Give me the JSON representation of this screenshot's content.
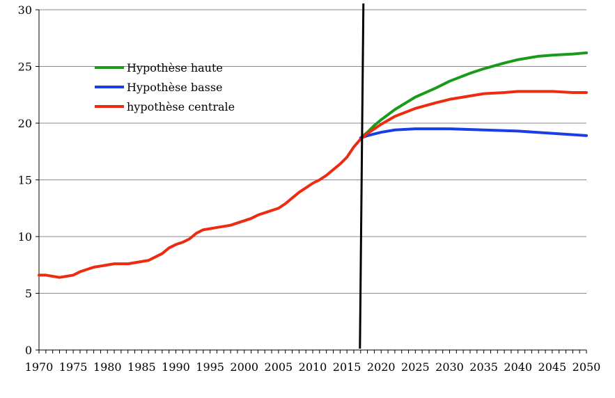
{
  "chart_data": {
    "type": "line",
    "title": "",
    "xlabel": "",
    "ylabel": "",
    "xlim": [
      1970,
      2050
    ],
    "ylim": [
      0,
      30
    ],
    "x_ticks": [
      "1970",
      "1975",
      "1980",
      "1985",
      "1990",
      "1995",
      "2000",
      "2005",
      "2010",
      "2015",
      "2020",
      "2025",
      "2030",
      "2035",
      "2040",
      "2045",
      "2050"
    ],
    "y_ticks": [
      "0",
      "5",
      "10",
      "15",
      "20",
      "25",
      "30"
    ],
    "grid": "horizontal",
    "legend": "top-left",
    "vertical_marker_year": 2017,
    "series": [
      {
        "name": "Hypothèse haute",
        "color": "#1a9a1a",
        "points": [
          [
            2017,
            18.7
          ],
          [
            2018,
            19.2
          ],
          [
            2019,
            19.8
          ],
          [
            2020,
            20.3
          ],
          [
            2022,
            21.2
          ],
          [
            2025,
            22.3
          ],
          [
            2028,
            23.1
          ],
          [
            2030,
            23.7
          ],
          [
            2033,
            24.4
          ],
          [
            2035,
            24.8
          ],
          [
            2038,
            25.3
          ],
          [
            2040,
            25.6
          ],
          [
            2043,
            25.9
          ],
          [
            2045,
            26.0
          ],
          [
            2048,
            26.1
          ],
          [
            2050,
            26.2
          ]
        ]
      },
      {
        "name": "Hypothèse basse",
        "color": "#1a3ee6",
        "points": [
          [
            2017,
            18.7
          ],
          [
            2018,
            18.9
          ],
          [
            2020,
            19.2
          ],
          [
            2022,
            19.4
          ],
          [
            2025,
            19.5
          ],
          [
            2030,
            19.5
          ],
          [
            2035,
            19.4
          ],
          [
            2040,
            19.3
          ],
          [
            2045,
            19.1
          ],
          [
            2050,
            18.9
          ]
        ]
      },
      {
        "name": "hypothèse centrale",
        "color": "#ee2a10",
        "points": [
          [
            1970,
            6.6
          ],
          [
            1971,
            6.6
          ],
          [
            1972,
            6.5
          ],
          [
            1973,
            6.4
          ],
          [
            1974,
            6.5
          ],
          [
            1975,
            6.6
          ],
          [
            1976,
            6.9
          ],
          [
            1977,
            7.1
          ],
          [
            1978,
            7.3
          ],
          [
            1979,
            7.4
          ],
          [
            1980,
            7.5
          ],
          [
            1981,
            7.6
          ],
          [
            1982,
            7.6
          ],
          [
            1983,
            7.6
          ],
          [
            1984,
            7.7
          ],
          [
            1985,
            7.8
          ],
          [
            1986,
            7.9
          ],
          [
            1987,
            8.2
          ],
          [
            1988,
            8.5
          ],
          [
            1989,
            9.0
          ],
          [
            1990,
            9.3
          ],
          [
            1991,
            9.5
          ],
          [
            1992,
            9.8
          ],
          [
            1993,
            10.3
          ],
          [
            1994,
            10.6
          ],
          [
            1995,
            10.7
          ],
          [
            1996,
            10.8
          ],
          [
            1997,
            10.9
          ],
          [
            1998,
            11.0
          ],
          [
            1999,
            11.2
          ],
          [
            2000,
            11.4
          ],
          [
            2001,
            11.6
          ],
          [
            2002,
            11.9
          ],
          [
            2003,
            12.1
          ],
          [
            2004,
            12.3
          ],
          [
            2005,
            12.5
          ],
          [
            2006,
            12.9
          ],
          [
            2007,
            13.4
          ],
          [
            2008,
            13.9
          ],
          [
            2009,
            14.3
          ],
          [
            2010,
            14.7
          ],
          [
            2011,
            15.0
          ],
          [
            2012,
            15.4
          ],
          [
            2013,
            15.9
          ],
          [
            2014,
            16.4
          ],
          [
            2015,
            17.0
          ],
          [
            2016,
            17.9
          ],
          [
            2017,
            18.6
          ],
          [
            2018,
            19.1
          ],
          [
            2020,
            19.9
          ],
          [
            2022,
            20.6
          ],
          [
            2025,
            21.3
          ],
          [
            2028,
            21.8
          ],
          [
            2030,
            22.1
          ],
          [
            2033,
            22.4
          ],
          [
            2035,
            22.6
          ],
          [
            2038,
            22.7
          ],
          [
            2040,
            22.8
          ],
          [
            2043,
            22.8
          ],
          [
            2045,
            22.8
          ],
          [
            2048,
            22.7
          ],
          [
            2050,
            22.7
          ]
        ]
      }
    ]
  }
}
